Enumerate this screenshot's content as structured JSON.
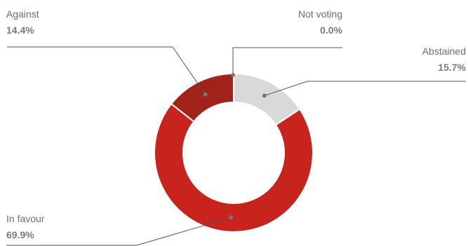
{
  "chart_data": {
    "type": "pie",
    "style": "donut",
    "slices": [
      {
        "label": "Abstained",
        "value": 15.7,
        "display": "15.7%",
        "color": "#d9d9d9"
      },
      {
        "label": "In favour",
        "value": 69.9,
        "display": "69.9%",
        "color": "#c8231d"
      },
      {
        "label": "Against",
        "value": 14.4,
        "display": "14.4%",
        "color": "#a12219"
      },
      {
        "label": "Not voting",
        "value": 0.0,
        "display": "0.0%",
        "color": "#c8231d"
      }
    ]
  }
}
